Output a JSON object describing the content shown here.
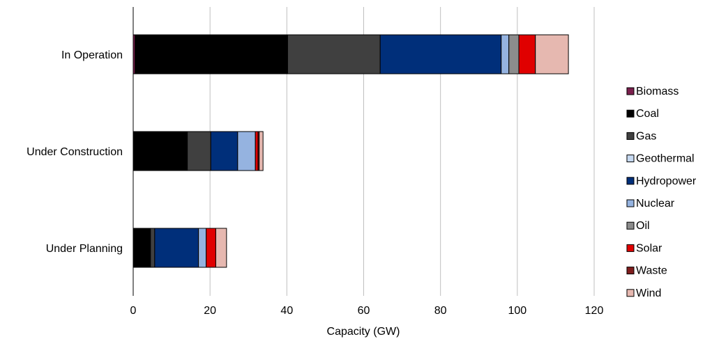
{
  "chart_data": {
    "type": "bar",
    "orientation": "horizontal",
    "stacked": true,
    "categories": [
      "In Operation",
      "Under Construction",
      "Under Planning"
    ],
    "series": [
      {
        "name": "Biomass",
        "color": "#7a1f4d",
        "values": [
          0.5,
          0,
          0
        ]
      },
      {
        "name": "Coal",
        "color": "#000000",
        "values": [
          39.7,
          14.1,
          4.5
        ]
      },
      {
        "name": "Gas",
        "color": "#404040",
        "values": [
          24.1,
          6.1,
          1.1
        ]
      },
      {
        "name": "Geothermal",
        "color": "#c6d9f1",
        "values": [
          0,
          0,
          0
        ]
      },
      {
        "name": "Hydropower",
        "color": "#002f7a",
        "values": [
          31.5,
          7.0,
          11.4
        ]
      },
      {
        "name": "Nuclear",
        "color": "#95b3e0",
        "values": [
          2.0,
          4.6,
          2.0
        ]
      },
      {
        "name": "Oil",
        "color": "#8c8c8c",
        "values": [
          2.6,
          0,
          0
        ]
      },
      {
        "name": "Solar",
        "color": "#e00000",
        "values": [
          4.3,
          0.7,
          2.5
        ]
      },
      {
        "name": "Waste",
        "color": "#7f1d1d",
        "values": [
          0,
          0.3,
          0
        ]
      },
      {
        "name": "Wind",
        "color": "#e6b8b0",
        "values": [
          8.6,
          1.0,
          2.8
        ]
      }
    ],
    "xlabel": "Capacity (GW)",
    "ylabel": "",
    "xlim": [
      0,
      120
    ],
    "xticks": [
      0,
      20,
      40,
      60,
      80,
      100,
      120
    ],
    "grid": "vertical",
    "legend_position": "right"
  }
}
